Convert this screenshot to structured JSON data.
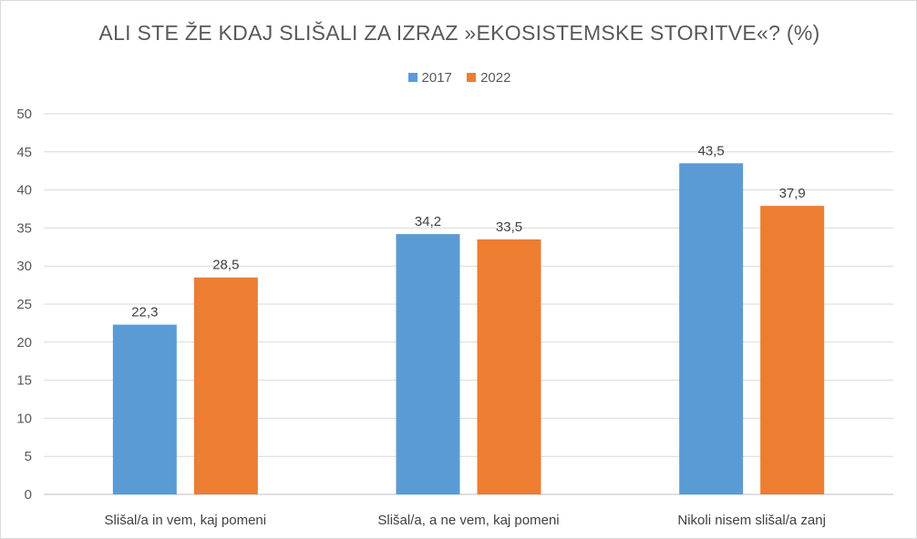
{
  "chart_data": {
    "type": "bar",
    "title": "ALI STE ŽE KDAJ SLIŠALI ZA IZRAZ »EKOSISTEMSKE STORITVE«? (%)",
    "categories": [
      "Slišal/a in vem, kaj pomeni",
      "Slišal/a, a ne vem, kaj pomeni",
      "Nikoli nisem slišal/a zanj"
    ],
    "series": [
      {
        "name": "2017",
        "color": "#5b9bd5",
        "values": [
          22.3,
          34.2,
          43.5
        ],
        "labels": [
          "22,3",
          "34,2",
          "43,5"
        ]
      },
      {
        "name": "2022",
        "color": "#ed7d31",
        "values": [
          28.5,
          33.5,
          37.9
        ],
        "labels": [
          "28,5",
          "33,5",
          "37,9"
        ]
      }
    ],
    "ylim": [
      0,
      50
    ],
    "yticks": [
      0,
      5,
      10,
      15,
      20,
      25,
      30,
      35,
      40,
      45,
      50
    ],
    "grid": true,
    "legend_position": "top-center"
  }
}
